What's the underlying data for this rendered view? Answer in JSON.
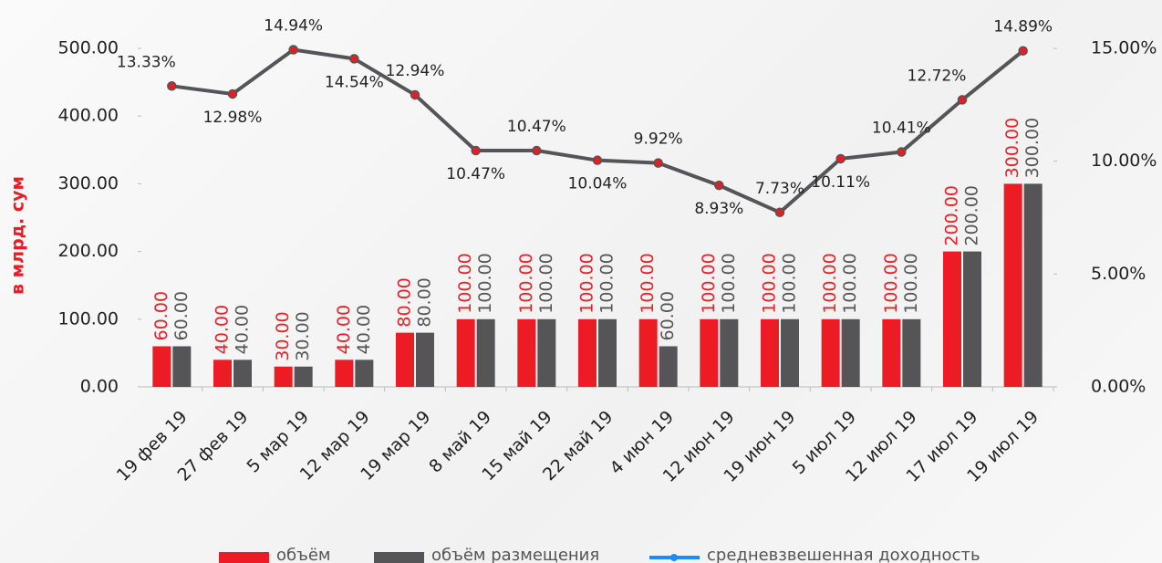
{
  "chart_data": {
    "type": "bar_line",
    "y_axis_label": "в млрд. сум",
    "categories": [
      "19 фев 19",
      "27 фев 19",
      "5 мар 19",
      "12 мар 19",
      "19 мар 19",
      "8 май 19",
      "15 май 19",
      "22 май 19",
      "4 июн 19",
      "12 июн 19",
      "19 июн 19",
      "5 июл 19",
      "12 июл 19",
      "17 июл 19",
      "19 июл 19"
    ],
    "series": [
      {
        "name": "объём",
        "type": "bar",
        "color": "#ed1c24",
        "label_color": "#ed1c24",
        "values": [
          60,
          40,
          30,
          40,
          80,
          100,
          100,
          100,
          100,
          100,
          100,
          100,
          100,
          200,
          300
        ],
        "value_labels": [
          "60.00",
          "40.00",
          "30.00",
          "40.00",
          "80.00",
          "100.00",
          "100.00",
          "100.00",
          "100.00",
          "100.00",
          "100.00",
          "100.00",
          "100.00",
          "200.00",
          "300.00"
        ]
      },
      {
        "name": "объём размещения",
        "type": "bar",
        "color": "#555557",
        "label_color": "#555557",
        "values": [
          60,
          40,
          30,
          40,
          80,
          100,
          100,
          100,
          60,
          100,
          100,
          100,
          100,
          200,
          300
        ],
        "value_labels": [
          "60.00",
          "40.00",
          "30.00",
          "40.00",
          "80.00",
          "100.00",
          "100.00",
          "100.00",
          "60.00",
          "100.00",
          "100.00",
          "100.00",
          "100.00",
          "200.00",
          "300.00"
        ]
      },
      {
        "name": "средневзвешенная доходность",
        "type": "line",
        "axis": "y2",
        "color": "#555557",
        "marker_color": "#e31e24",
        "legend_color": "#1a8cff",
        "values": [
          13.33,
          12.98,
          14.94,
          14.54,
          12.94,
          10.47,
          10.47,
          10.04,
          9.92,
          8.93,
          7.73,
          10.11,
          10.41,
          12.72,
          14.89
        ],
        "value_labels": [
          "13.33%",
          "12.98%",
          "14.94%",
          "14.54%",
          "12.94%",
          "10.47%",
          "10.47%",
          "10.04%",
          "9.92%",
          "8.93%",
          "7.73%",
          "10.11%",
          "10.41%",
          "12.72%",
          "14.89%"
        ]
      }
    ],
    "ylim": [
      0,
      500
    ],
    "yticks": [
      {
        "value": 0,
        "label": "0.00"
      },
      {
        "value": 100,
        "label": "100.00"
      },
      {
        "value": 200,
        "label": "200.00"
      },
      {
        "value": 300,
        "label": "300.00"
      },
      {
        "value": 400,
        "label": "400.00"
      },
      {
        "value": 500,
        "label": "500.00"
      }
    ],
    "y2lim": [
      0,
      15
    ],
    "y2ticks": [
      {
        "value": 0,
        "label": "0.00%"
      },
      {
        "value": 5,
        "label": "5.00%"
      },
      {
        "value": 10,
        "label": "10.00%"
      },
      {
        "value": 15,
        "label": "15.00%"
      }
    ],
    "legend": "bottom"
  }
}
